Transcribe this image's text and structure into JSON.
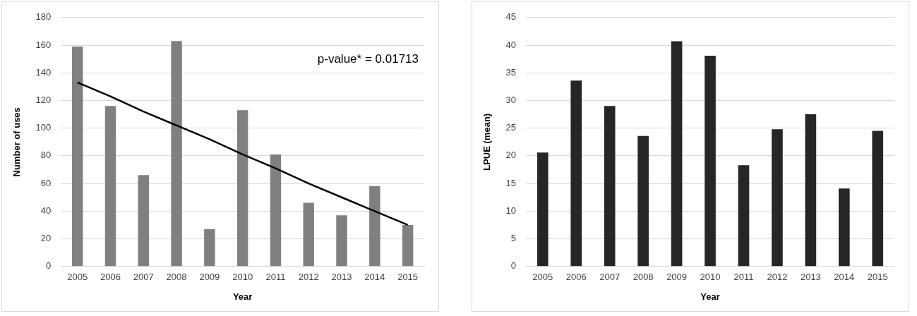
{
  "chart_data": [
    {
      "type": "bar",
      "xlabel": "Year",
      "ylabel": "Number of uses",
      "categories": [
        "2005",
        "2006",
        "2007",
        "2008",
        "2009",
        "2010",
        "2011",
        "2012",
        "2013",
        "2014",
        "2015"
      ],
      "series": [
        {
          "color": "#808080",
          "values": [
            159,
            116,
            66,
            163,
            27,
            113,
            81,
            46,
            37,
            58,
            30
          ]
        },
        {
          "type": "line",
          "color": "#000000",
          "values": [
            133,
            123,
            112,
            102,
            92,
            81,
            71,
            60,
            50,
            40,
            30
          ]
        }
      ],
      "ylim": [
        0,
        180
      ],
      "yticks": [
        0,
        20,
        40,
        60,
        80,
        100,
        120,
        140,
        160,
        180
      ],
      "grid": "y",
      "annotations": [
        "p-value* = 0.01713"
      ]
    },
    {
      "type": "bar",
      "xlabel": "Year",
      "ylabel": "LPUE (mean)",
      "categories": [
        "2005",
        "2006",
        "2007",
        "2008",
        "2009",
        "2010",
        "2011",
        "2012",
        "2013",
        "2014",
        "2015"
      ],
      "series": [
        {
          "color": "#262626",
          "values": [
            20.6,
            33.6,
            29,
            23.6,
            40.7,
            38.1,
            18.3,
            24.8,
            27.5,
            14.1,
            24.5
          ]
        }
      ],
      "ylim": [
        0,
        45
      ],
      "yticks": [
        0,
        5,
        10,
        15,
        20,
        25,
        30,
        35,
        40,
        45
      ],
      "grid": "y"
    }
  ]
}
